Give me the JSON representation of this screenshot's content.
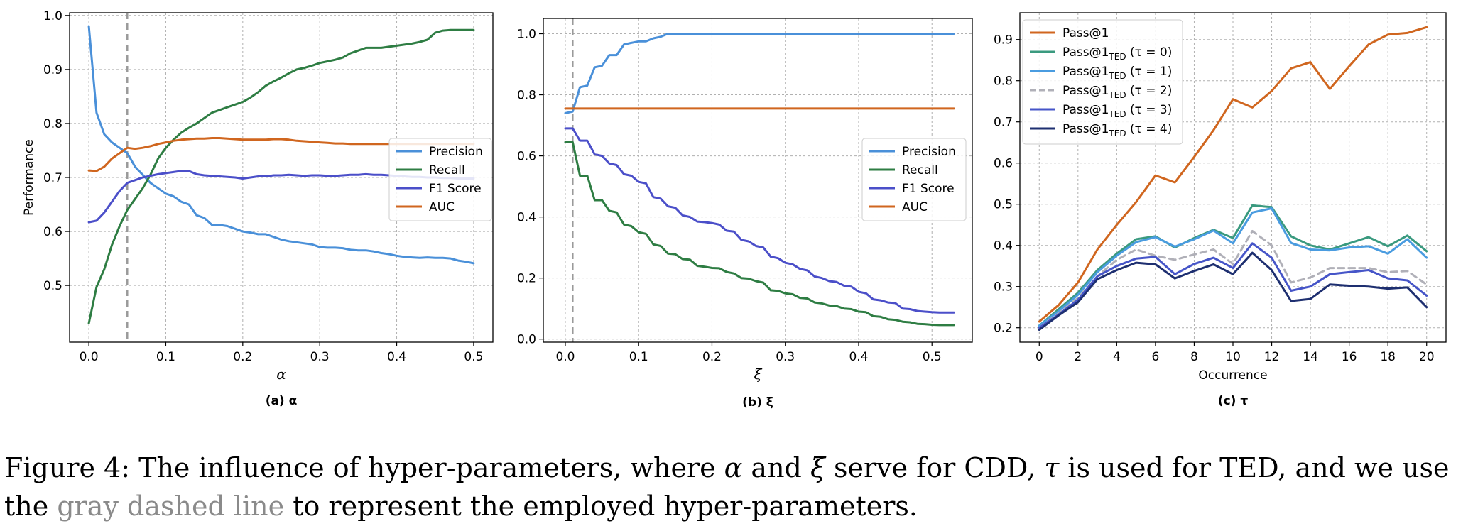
{
  "colors": {
    "precision": "#4a90d9",
    "recall": "#2e7d43",
    "f1": "#4b4fc9",
    "auc": "#d0661f",
    "ted0": "#3a9a7f",
    "ted1": "#4a9ce0",
    "ted2": "#b0b0b8",
    "ted3": "#4655c8",
    "ted4": "#1e2f70",
    "pass1": "#d0661f"
  },
  "chart_data": [
    {
      "type": "line",
      "caption": "(a) α",
      "xlabel": "α",
      "ylabel": "Performance",
      "xlim": [
        -0.025,
        0.525
      ],
      "ylim": [
        0.395,
        1.005
      ],
      "xticks": [
        0.0,
        0.1,
        0.2,
        0.3,
        0.4,
        0.5
      ],
      "yticks": [
        0.5,
        0.6,
        0.7,
        0.8,
        0.9,
        1.0
      ],
      "vline": 0.05,
      "legend_position": "center-right",
      "x": [
        0,
        0.01,
        0.02,
        0.03,
        0.04,
        0.05,
        0.06,
        0.07,
        0.08,
        0.09,
        0.1,
        0.11,
        0.12,
        0.13,
        0.14,
        0.15,
        0.16,
        0.17,
        0.18,
        0.19,
        0.2,
        0.21,
        0.22,
        0.23,
        0.24,
        0.25,
        0.26,
        0.27,
        0.28,
        0.29,
        0.3,
        0.31,
        0.32,
        0.33,
        0.34,
        0.35,
        0.36,
        0.37,
        0.38,
        0.39,
        0.4,
        0.41,
        0.42,
        0.43,
        0.44,
        0.45,
        0.46,
        0.47,
        0.48,
        0.49,
        0.5
      ],
      "series": [
        {
          "name": "Precision",
          "color_key": "precision",
          "values": [
            0.98,
            0.82,
            0.78,
            0.765,
            0.755,
            0.745,
            0.72,
            0.705,
            0.69,
            0.68,
            0.67,
            0.665,
            0.655,
            0.65,
            0.63,
            0.625,
            0.612,
            0.612,
            0.61,
            0.605,
            0.6,
            0.598,
            0.595,
            0.595,
            0.59,
            0.585,
            0.582,
            0.58,
            0.578,
            0.576,
            0.571,
            0.57,
            0.57,
            0.569,
            0.566,
            0.565,
            0.565,
            0.563,
            0.56,
            0.558,
            0.555,
            0.553,
            0.552,
            0.551,
            0.552,
            0.551,
            0.551,
            0.55,
            0.546,
            0.544,
            0.541
          ]
        },
        {
          "name": "Recall",
          "color_key": "recall",
          "values": [
            0.43,
            0.497,
            0.53,
            0.575,
            0.61,
            0.64,
            0.66,
            0.68,
            0.705,
            0.735,
            0.755,
            0.77,
            0.783,
            0.792,
            0.8,
            0.81,
            0.82,
            0.825,
            0.83,
            0.835,
            0.84,
            0.848,
            0.858,
            0.87,
            0.878,
            0.885,
            0.893,
            0.9,
            0.903,
            0.907,
            0.912,
            0.915,
            0.918,
            0.922,
            0.93,
            0.935,
            0.94,
            0.94,
            0.94,
            0.942,
            0.944,
            0.946,
            0.948,
            0.951,
            0.955,
            0.968,
            0.972,
            0.973,
            0.973,
            0.973,
            0.973
          ]
        },
        {
          "name": "F1 Score",
          "color_key": "f1",
          "values": [
            0.617,
            0.62,
            0.635,
            0.655,
            0.675,
            0.69,
            0.695,
            0.7,
            0.703,
            0.706,
            0.708,
            0.71,
            0.712,
            0.712,
            0.706,
            0.704,
            0.703,
            0.702,
            0.701,
            0.7,
            0.698,
            0.7,
            0.702,
            0.702,
            0.704,
            0.704,
            0.705,
            0.704,
            0.703,
            0.704,
            0.704,
            0.703,
            0.703,
            0.704,
            0.705,
            0.705,
            0.706,
            0.705,
            0.705,
            0.704,
            0.703,
            0.702,
            0.701,
            0.701,
            0.7,
            0.7,
            0.699,
            0.699,
            0.698,
            0.698,
            0.698
          ]
        },
        {
          "name": "AUC",
          "color_key": "auc",
          "values": [
            0.713,
            0.712,
            0.72,
            0.735,
            0.745,
            0.755,
            0.753,
            0.755,
            0.758,
            0.762,
            0.765,
            0.768,
            0.77,
            0.771,
            0.772,
            0.772,
            0.773,
            0.773,
            0.772,
            0.771,
            0.77,
            0.77,
            0.77,
            0.77,
            0.771,
            0.771,
            0.77,
            0.768,
            0.767,
            0.766,
            0.765,
            0.764,
            0.763,
            0.763,
            0.762,
            0.762,
            0.762,
            0.762,
            0.762,
            0.762,
            0.762,
            0.762,
            0.762,
            0.762,
            0.762,
            0.762,
            0.762,
            0.762,
            0.762,
            0.762,
            0.762
          ]
        }
      ]
    },
    {
      "type": "line",
      "caption": "(b) ξ",
      "xlabel": "ξ",
      "ylabel": "",
      "xlim": [
        -0.03,
        0.555
      ],
      "ylim": [
        -0.01,
        1.05
      ],
      "xticks": [
        0.0,
        0.1,
        0.2,
        0.3,
        0.4,
        0.5
      ],
      "yticks": [
        0.0,
        0.2,
        0.4,
        0.6,
        0.8,
        1.0
      ],
      "vline": 0.01,
      "legend_position": "center-right",
      "x": [
        0,
        0.01,
        0.02,
        0.03,
        0.04,
        0.05,
        0.06,
        0.07,
        0.08,
        0.09,
        0.1,
        0.11,
        0.12,
        0.13,
        0.14,
        0.15,
        0.16,
        0.17,
        0.18,
        0.19,
        0.2,
        0.21,
        0.22,
        0.23,
        0.24,
        0.25,
        0.26,
        0.27,
        0.28,
        0.29,
        0.3,
        0.31,
        0.32,
        0.33,
        0.34,
        0.35,
        0.36,
        0.37,
        0.38,
        0.39,
        0.4,
        0.41,
        0.42,
        0.43,
        0.44,
        0.45,
        0.46,
        0.47,
        0.48,
        0.49,
        0.5,
        0.51,
        0.52,
        0.53
      ],
      "series": [
        {
          "name": "Precision",
          "color_key": "precision",
          "values": [
            0.74,
            0.745,
            0.825,
            0.83,
            0.89,
            0.895,
            0.93,
            0.93,
            0.965,
            0.97,
            0.975,
            0.975,
            0.985,
            0.99,
            1,
            1,
            1,
            1,
            1,
            1,
            1,
            1,
            1,
            1,
            1,
            1,
            1,
            1,
            1,
            1,
            1,
            1,
            1,
            1,
            1,
            1,
            1,
            1,
            1,
            1,
            1,
            1,
            1,
            1,
            1,
            1,
            1,
            1,
            1,
            1,
            1,
            1,
            1,
            1
          ]
        },
        {
          "name": "Recall",
          "color_key": "recall",
          "values": [
            0.645,
            0.645,
            0.535,
            0.535,
            0.455,
            0.455,
            0.42,
            0.415,
            0.375,
            0.37,
            0.35,
            0.345,
            0.31,
            0.305,
            0.28,
            0.278,
            0.262,
            0.26,
            0.24,
            0.237,
            0.233,
            0.232,
            0.22,
            0.215,
            0.2,
            0.198,
            0.19,
            0.185,
            0.16,
            0.158,
            0.15,
            0.147,
            0.135,
            0.133,
            0.12,
            0.117,
            0.11,
            0.108,
            0.1,
            0.098,
            0.09,
            0.088,
            0.075,
            0.073,
            0.065,
            0.063,
            0.057,
            0.055,
            0.05,
            0.049,
            0.047,
            0.046,
            0.046,
            0.046
          ]
        },
        {
          "name": "F1 Score",
          "color_key": "f1",
          "values": [
            0.69,
            0.69,
            0.65,
            0.65,
            0.605,
            0.6,
            0.575,
            0.57,
            0.54,
            0.535,
            0.515,
            0.51,
            0.465,
            0.46,
            0.435,
            0.43,
            0.405,
            0.4,
            0.385,
            0.383,
            0.38,
            0.375,
            0.355,
            0.352,
            0.325,
            0.32,
            0.305,
            0.3,
            0.27,
            0.265,
            0.25,
            0.245,
            0.23,
            0.225,
            0.205,
            0.2,
            0.19,
            0.187,
            0.175,
            0.172,
            0.155,
            0.15,
            0.13,
            0.127,
            0.12,
            0.118,
            0.1,
            0.098,
            0.092,
            0.09,
            0.088,
            0.087,
            0.087,
            0.087
          ]
        },
        {
          "name": "AUC",
          "color_key": "auc",
          "values": [
            0.755,
            0.755,
            0.755,
            0.755,
            0.755,
            0.755,
            0.755,
            0.755,
            0.755,
            0.755,
            0.755,
            0.755,
            0.755,
            0.755,
            0.755,
            0.755,
            0.755,
            0.755,
            0.755,
            0.755,
            0.755,
            0.755,
            0.755,
            0.755,
            0.755,
            0.755,
            0.755,
            0.755,
            0.755,
            0.755,
            0.755,
            0.755,
            0.755,
            0.755,
            0.755,
            0.755,
            0.755,
            0.755,
            0.755,
            0.755,
            0.755,
            0.755,
            0.755,
            0.755,
            0.755,
            0.755,
            0.755,
            0.755,
            0.755,
            0.755,
            0.755,
            0.755,
            0.755,
            0.755
          ]
        }
      ]
    },
    {
      "type": "line",
      "caption": "(c) τ",
      "xlabel": "Occurrence",
      "ylabel": "",
      "xlim": [
        -1,
        21
      ],
      "ylim": [
        0.165,
        0.965
      ],
      "xticks": [
        0,
        2,
        4,
        6,
        8,
        10,
        12,
        14,
        16,
        18,
        20
      ],
      "yticks": [
        0.2,
        0.3,
        0.4,
        0.5,
        0.6,
        0.7,
        0.8,
        0.9
      ],
      "legend_position": "upper-left",
      "x": [
        0,
        1,
        2,
        3,
        4,
        5,
        6,
        7,
        8,
        9,
        10,
        11,
        12,
        13,
        14,
        15,
        16,
        17,
        18,
        19,
        20
      ],
      "series": [
        {
          "name": "Pass@1",
          "legend_main": "Pass@1",
          "legend_sub": "",
          "legend_tail": "",
          "color_key": "pass1",
          "dashed": false,
          "values": [
            0.215,
            0.255,
            0.31,
            0.39,
            0.45,
            0.505,
            0.57,
            0.553,
            0.615,
            0.68,
            0.755,
            0.735,
            0.775,
            0.83,
            0.845,
            0.78,
            0.835,
            0.888,
            0.912,
            0.916,
            0.93
          ]
        },
        {
          "name": "Pass@1TED (τ = 0)",
          "legend_main": "Pass@1",
          "legend_sub": "TED",
          "legend_tail": " (τ = 0)",
          "color_key": "ted0",
          "dashed": false,
          "values": [
            0.205,
            0.245,
            0.285,
            0.34,
            0.38,
            0.415,
            0.422,
            0.395,
            0.418,
            0.438,
            0.418,
            0.497,
            0.493,
            0.422,
            0.4,
            0.39,
            0.405,
            0.42,
            0.398,
            0.424,
            0.386
          ]
        },
        {
          "name": "Pass@1TED (τ = 1)",
          "legend_main": "Pass@1",
          "legend_sub": "TED",
          "legend_tail": " (τ = 1)",
          "color_key": "ted1",
          "dashed": false,
          "values": [
            0.205,
            0.24,
            0.28,
            0.335,
            0.375,
            0.408,
            0.42,
            0.397,
            0.415,
            0.436,
            0.405,
            0.48,
            0.49,
            0.406,
            0.39,
            0.388,
            0.395,
            0.398,
            0.38,
            0.415,
            0.37
          ]
        },
        {
          "name": "Pass@1TED (τ = 2)",
          "legend_main": "Pass@1",
          "legend_sub": "TED",
          "legend_tail": " (τ = 2)",
          "color_key": "ted2",
          "dashed": true,
          "values": [
            0.2,
            0.235,
            0.272,
            0.325,
            0.365,
            0.39,
            0.375,
            0.365,
            0.378,
            0.39,
            0.355,
            0.435,
            0.4,
            0.31,
            0.322,
            0.345,
            0.345,
            0.345,
            0.335,
            0.338,
            0.305
          ]
        },
        {
          "name": "Pass@1TED (τ = 3)",
          "legend_main": "Pass@1",
          "legend_sub": "TED",
          "legend_tail": " (τ = 3)",
          "color_key": "ted3",
          "dashed": false,
          "values": [
            0.2,
            0.232,
            0.268,
            0.325,
            0.35,
            0.368,
            0.372,
            0.33,
            0.355,
            0.37,
            0.345,
            0.405,
            0.37,
            0.29,
            0.3,
            0.33,
            0.335,
            0.34,
            0.32,
            0.315,
            0.278
          ]
        },
        {
          "name": "Pass@1TED (τ = 4)",
          "legend_main": "Pass@1",
          "legend_sub": "TED",
          "legend_tail": " (τ = 4)",
          "color_key": "ted4",
          "dashed": false,
          "values": [
            0.195,
            0.23,
            0.262,
            0.318,
            0.34,
            0.358,
            0.354,
            0.32,
            0.338,
            0.354,
            0.33,
            0.382,
            0.34,
            0.265,
            0.27,
            0.305,
            0.302,
            0.3,
            0.295,
            0.298,
            0.25
          ]
        }
      ]
    }
  ],
  "caption": {
    "lead": "Figure 4: The influence of hyper-parameters, where ",
    "alpha": "α",
    "and": " and ",
    "xi": "ξ",
    "mid": " serve for CDD, ",
    "tau": "τ",
    "mid2": " is used for TED, and we use the ",
    "gray": "gray dashed line",
    "tail": " to represent the employed hyper-parameters."
  }
}
